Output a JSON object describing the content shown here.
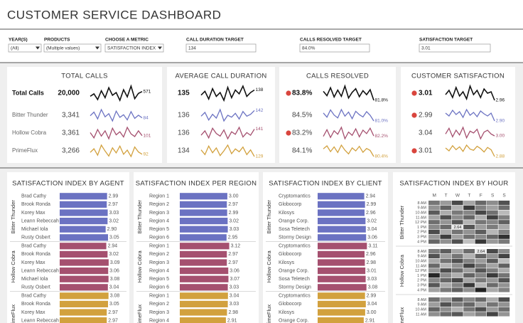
{
  "header": {
    "title": "CUSTOMER SERVICE DASHBOARD"
  },
  "filters": [
    {
      "label": "YEAR(S)",
      "value": "(All)"
    },
    {
      "label": "PRODUCTS",
      "value": "(Multiple values)"
    },
    {
      "label": "CHOOSE A METRIC",
      "value": "SATISFACTION INDEX"
    },
    {
      "label": "CALL DURATION TARGET",
      "value": "134"
    },
    {
      "label": "CALLS RESOLVED TARGET",
      "value": "84.0%"
    },
    {
      "label": "SATISFACTION TARGET",
      "value": "3.01"
    }
  ],
  "kpi_panels": [
    {
      "title": "TOTAL CALLS",
      "rows": [
        {
          "label": "Total Calls",
          "value": "20,000",
          "end_label": "571",
          "color": "#111111",
          "spark": [
            548,
            560,
            532,
            575,
            541,
            590,
            553,
            566,
            528,
            580,
            545,
            598,
            536,
            562,
            571
          ]
        },
        {
          "label": "Bitter Thunder",
          "value": "3,341",
          "end_label": "84",
          "color": "#6b72c2",
          "spark": [
            88,
            95,
            82,
            100,
            86,
            92,
            78,
            97,
            85,
            90,
            80,
            96,
            83,
            89,
            84
          ]
        },
        {
          "label": "Hollow Cobra",
          "value": "3,361",
          "end_label": "101",
          "color": "#a5506f",
          "spark": [
            108,
            96,
            115,
            100,
            112,
            94,
            118,
            103,
            110,
            98,
            120,
            105,
            99,
            112,
            101
          ]
        },
        {
          "label": "PrimeFlux",
          "value": "3,266",
          "end_label": "92",
          "color": "#d2a13e",
          "spark": [
            96,
            104,
            90,
            112,
            99,
            88,
            106,
            95,
            110,
            92,
            101,
            87,
            108,
            97,
            92
          ]
        }
      ]
    },
    {
      "title": "AVERAGE CALL DURATION",
      "rows": [
        {
          "value": "135",
          "end_label": "138",
          "color": "#111111",
          "spark": [
            134,
            137,
            131,
            139,
            133,
            136,
            130,
            140,
            132,
            138,
            135,
            141,
            133,
            136,
            138
          ]
        },
        {
          "value": "136",
          "end_label": "142",
          "color": "#6b72c2",
          "spark": [
            136,
            140,
            132,
            138,
            134,
            143,
            131,
            137,
            135,
            139,
            133,
            141,
            136,
            138,
            142
          ]
        },
        {
          "value": "136",
          "end_label": "141",
          "color": "#a5506f",
          "spark": [
            134,
            139,
            131,
            142,
            136,
            133,
            140,
            130,
            138,
            135,
            143,
            132,
            137,
            134,
            141
          ]
        },
        {
          "value": "134",
          "end_label": "129",
          "color": "#d2a13e",
          "spark": [
            136,
            131,
            140,
            133,
            138,
            130,
            135,
            141,
            132,
            137,
            134,
            139,
            131,
            136,
            129
          ]
        }
      ]
    },
    {
      "title": "CALLS RESOLVED",
      "rows": [
        {
          "value": "83.8%",
          "end_label": "81.8%",
          "color": "#111111",
          "alert": true,
          "spark": [
            84.5,
            83.2,
            85.6,
            82.8,
            84.9,
            83.0,
            86.1,
            82.5,
            84.2,
            85.3,
            82.9,
            84.7,
            83.5,
            85.0,
            81.8
          ]
        },
        {
          "value": "84.5%",
          "end_label": "81.0%",
          "color": "#6b72c2",
          "spark": [
            85.2,
            83.0,
            86.8,
            84.1,
            82.6,
            87.0,
            83.5,
            85.7,
            82.2,
            86.1,
            84.3,
            83.1,
            85.9,
            84.0,
            81.0
          ]
        },
        {
          "value": "83.2%",
          "end_label": "82.2%",
          "color": "#a5506f",
          "alert": true,
          "spark": [
            82.0,
            85.1,
            81.5,
            84.6,
            83.0,
            86.2,
            80.9,
            84.0,
            82.5,
            85.5,
            81.8,
            84.9,
            83.3,
            85.8,
            82.2
          ]
        },
        {
          "value": "84.1%",
          "end_label": "80.4%",
          "color": "#d2a13e",
          "spark": [
            84.8,
            86.5,
            83.2,
            85.9,
            82.7,
            86.9,
            84.0,
            81.9,
            85.3,
            83.6,
            86.2,
            82.8,
            85.0,
            83.9,
            80.4
          ]
        }
      ]
    },
    {
      "title": "CUSTOMER SATISFACTION",
      "rows": [
        {
          "value": "3.01",
          "end_label": "2.96",
          "color": "#111111",
          "alert": true,
          "spark": [
            3.0,
            3.03,
            2.98,
            3.05,
            2.99,
            3.02,
            2.97,
            3.06,
            3.0,
            3.03,
            2.98,
            3.04,
            3.01,
            3.02,
            2.96
          ]
        },
        {
          "value": "2.99",
          "end_label": "2.90",
          "color": "#6b72c2",
          "alert": true,
          "spark": [
            3.01,
            2.97,
            3.05,
            2.99,
            3.03,
            2.95,
            3.06,
            2.98,
            3.02,
            2.96,
            3.04,
            3.0,
            2.97,
            3.01,
            2.9
          ]
        },
        {
          "value": "3.04",
          "end_label": "3.00",
          "color": "#a5506f",
          "spark": [
            3.02,
            3.08,
            2.99,
            3.06,
            3.01,
            3.09,
            2.98,
            3.05,
            3.03,
            3.07,
            2.97,
            3.04,
            3.06,
            3.02,
            3.0
          ]
        },
        {
          "value": "3.01",
          "end_label": "2.88",
          "color": "#d2a13e",
          "alert": true,
          "spark": [
            3.03,
            2.98,
            3.07,
            3.0,
            3.05,
            2.97,
            3.08,
            3.01,
            2.99,
            3.06,
            3.02,
            2.96,
            3.04,
            3.0,
            2.88
          ]
        }
      ]
    }
  ],
  "bar_panels": [
    {
      "title": "SATISFACTION INDEX BY AGENT",
      "xlim": [
        0,
        3.3
      ],
      "groups": [
        {
          "name": "Bitter Thunder",
          "color": "#6b72c2",
          "categories": [
            "Brad Cathy",
            "Brook Ronda",
            "Korey Max",
            "Leann Rebeccah",
            "Michael Iola",
            "Rusty Osbert"
          ],
          "values": [
            2.99,
            2.97,
            3.03,
            3.02,
            2.9,
            3.05
          ],
          "value_labels": [
            "2.99",
            "2.97",
            "3.03",
            "3.02",
            "2.90",
            "3.05"
          ]
        },
        {
          "name": "Hollow Cobra",
          "color": "#a5506f",
          "categories": [
            "Brad Cathy",
            "Brook Ronda",
            "Korey Max",
            "Leann Rebeccah",
            "Michael Iola",
            "Rusty Osbert"
          ],
          "values": [
            2.94,
            3.02,
            3.09,
            3.06,
            3.08,
            3.04
          ],
          "value_labels": [
            "2.94",
            "3.02",
            "3.09",
            "3.06",
            "3.08",
            "3.04"
          ]
        },
        {
          "name": "PrimeFlux",
          "color": "#d2a13e",
          "categories": [
            "Brad Cathy",
            "Brook Ronda",
            "Korey Max",
            "Leann Rebeccah"
          ],
          "values": [
            3.08,
            3.05,
            2.97,
            2.97
          ],
          "value_labels": [
            "3.08",
            "3.05",
            "2.97",
            "2.97"
          ]
        }
      ]
    },
    {
      "title": "SATISFACTION INDEX PER REGION",
      "xlim": [
        0,
        3.3
      ],
      "groups": [
        {
          "name": "Bitter Thunder",
          "color": "#6b72c2",
          "categories": [
            "Region 1",
            "Region 2",
            "Region 3",
            "Region 4",
            "Region 5",
            "Region 6"
          ],
          "values": [
            3,
            2.97,
            2.99,
            3.02,
            3.03,
            2.95
          ],
          "value_labels": [
            "3.00",
            "2.97",
            "2.99",
            "3.02",
            "3.03",
            "2.95"
          ]
        },
        {
          "name": "Hollow Cobra",
          "color": "#a5506f",
          "categories": [
            "Region 1",
            "Region 2",
            "Region 3",
            "Region 4",
            "Region 5",
            "Region 6"
          ],
          "values": [
            3.12,
            2.97,
            2.97,
            3.06,
            3.07,
            3.03
          ],
          "value_labels": [
            "3.12",
            "2.97",
            "2.97",
            "3.06",
            "3.07",
            "3.03"
          ]
        },
        {
          "name": "PrimeFlux",
          "color": "#d2a13e",
          "categories": [
            "Region 1",
            "Region 2",
            "Region 3",
            "Region 4"
          ],
          "values": [
            3.04,
            3.03,
            2.98,
            2.91
          ],
          "value_labels": [
            "3.04",
            "3.03",
            "2.98",
            "2.91"
          ]
        }
      ]
    },
    {
      "title": "SATISFACTION INDEX BY CLIENT",
      "xlim": [
        0,
        3.3
      ],
      "groups": [
        {
          "name": "Bitter Thunder",
          "color": "#6b72c2",
          "categories": [
            "Cryptomantics",
            "Globocorp",
            "Kilosys",
            "Orange Corp.",
            "Sosa Teletech",
            "Stormy Design"
          ],
          "values": [
            2.94,
            2.99,
            2.96,
            3.02,
            3.04,
            3.06
          ],
          "value_labels": [
            "2.94",
            "2.99",
            "2.96",
            "3.02",
            "3.04",
            "3.06"
          ]
        },
        {
          "name": "Hollow Cobra",
          "color": "#a5506f",
          "categories": [
            "Cryptomantics",
            "Globocorp",
            "Kilosys",
            "Orange Corp.",
            "Sosa Teletech",
            "Stormy Design"
          ],
          "values": [
            3.11,
            2.96,
            2.98,
            3.01,
            3.03,
            3.08
          ],
          "value_labels": [
            "3.11",
            "2.96",
            "2.98",
            "3.01",
            "3.03",
            "3.08"
          ]
        },
        {
          "name": "PrimeFlux",
          "color": "#d2a13e",
          "categories": [
            "Cryptomantics",
            "Globocorp",
            "Kilosys",
            "Orange Corp."
          ],
          "values": [
            2.99,
            3.04,
            3,
            2.91
          ],
          "value_labels": [
            "2.99",
            "3.04",
            "3.00",
            "2.91"
          ]
        }
      ]
    }
  ],
  "heatmap": {
    "title": "SATISFACTION INDEX BY HOUR",
    "days": [
      "M",
      "T",
      "W",
      "T",
      "F",
      "S",
      "S"
    ],
    "hours": [
      "8 AM",
      "9 AM",
      "10 AM",
      "11 AM",
      "12 PM",
      "1 PM",
      "2 PM",
      "3 PM",
      "4 PM"
    ],
    "vlim": [
      2.6,
      3.4
    ],
    "groups": [
      {
        "name": "Bitter Thunder",
        "label_cell": [
          5,
          2
        ],
        "values": [
          [
            3.05,
            2.92,
            3.21,
            2.88,
            3.1,
            2.97,
            3.18
          ],
          [
            2.95,
            3.12,
            2.84,
            3.26,
            3.01,
            2.9,
            3.08
          ],
          [
            3.15,
            2.86,
            3.04,
            2.99,
            3.22,
            3.07,
            2.81
          ],
          [
            2.89,
            3.19,
            2.97,
            3.11,
            2.85,
            3.24,
            3.02
          ],
          [
            3.08,
            2.94,
            3.16,
            2.83,
            3.05,
            2.99,
            3.13
          ],
          [
            2.98,
            3.09,
            2.64,
            3.17,
            2.91,
            3.03,
            2.87
          ],
          [
            3.2,
            2.87,
            3.06,
            2.95,
            3.14,
            2.82,
            3.01
          ],
          [
            2.93,
            3.25,
            2.9,
            3.07,
            2.98,
            3.11,
            3.3
          ],
          [
            3.11,
            2.96,
            3.19,
            2.79,
            3.28,
            2.93,
            3.04
          ]
        ]
      },
      {
        "name": "Hollow Cobra",
        "label_cell": [
          0,
          4
        ],
        "values": [
          [
            3.02,
            3.14,
            2.88,
            3.09,
            2.64,
            3.21,
            2.97
          ],
          [
            3.18,
            2.9,
            3.05,
            2.84,
            3.12,
            2.95,
            3.23
          ],
          [
            2.87,
            3.07,
            3.19,
            3.01,
            2.92,
            3.15,
            2.8
          ],
          [
            3.1,
            2.83,
            2.96,
            3.24,
            3.05,
            2.89,
            3.13
          ],
          [
            2.94,
            3.2,
            3.08,
            2.91,
            3.17,
            3.03,
            2.86
          ],
          [
            3.33,
            2.97,
            2.85,
            3.12,
            2.99,
            3.26,
            3.06
          ],
          [
            2.99,
            3.11,
            3.22,
            2.88,
            3.04,
            2.93,
            3.18
          ],
          [
            3.16,
            2.86,
            3.0,
            3.27,
            2.82,
            3.09,
            2.95
          ],
          [
            2.9,
            3.04,
            3.13,
            2.96,
            3.35,
            2.87,
            3.01
          ]
        ]
      },
      {
        "name": "PrimeFlux",
        "values": [
          [
            3.07,
            2.93,
            3.15,
            2.99,
            3.1,
            2.86,
            3.2
          ],
          [
            2.91,
            3.18,
            3.02,
            3.11,
            2.88,
            3.06,
            2.95
          ],
          [
            3.12,
            2.97,
            2.84,
            3.05,
            3.19,
            2.92,
            3.08
          ],
          [
            2.96,
            3.09,
            3.16,
            2.89,
            3.01,
            3.23,
            2.94
          ]
        ]
      }
    ]
  }
}
